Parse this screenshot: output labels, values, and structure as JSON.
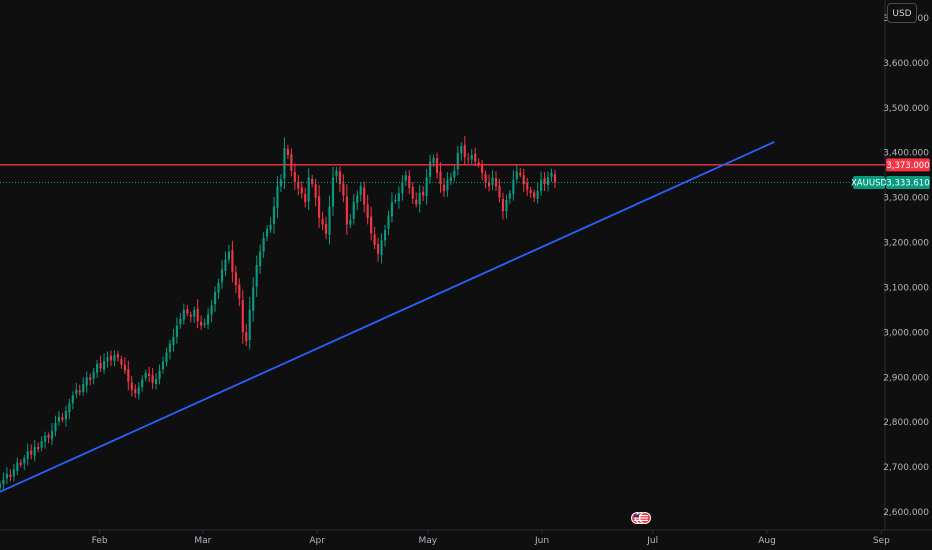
{
  "currency_label": "USD",
  "colors": {
    "background": "#0f0f0f",
    "up": "#089981",
    "down": "#f23645",
    "resistance": "#f23645",
    "trendline": "#2962ff",
    "price_line": "#089981",
    "axis_text": "#b2b5be"
  },
  "badges": {
    "resistance_value": "3,373.000",
    "symbol": "XAUUSD",
    "last_price": "3,333.610"
  },
  "events_icon": "us-flag-events-icon",
  "chart_data": {
    "type": "candlestick",
    "symbol": "XAUUSD",
    "x_ticks": [
      "Feb",
      "Mar",
      "Apr",
      "May",
      "Jun",
      "Jul",
      "Aug",
      "Sep"
    ],
    "y_ticks": [
      "2,600.000",
      "2,700.000",
      "2,800.000",
      "2,900.000",
      "3,000.000",
      "3,100.000",
      "3,200.000",
      "3,300.000",
      "3,400.000",
      "3,500.000",
      "3,600.000",
      "3,700.000"
    ],
    "y_tick_values": [
      2600,
      2700,
      2800,
      2900,
      3000,
      3100,
      3200,
      3300,
      3400,
      3500,
      3600,
      3700
    ],
    "ylim": [
      2560,
      3740
    ],
    "x_range_days": [
      0,
      240
    ],
    "month_start_days": [
      27,
      55,
      86,
      116,
      147,
      177,
      208,
      239
    ],
    "resistance_level": 3373,
    "last_price": 3333.61,
    "trendline": {
      "start": {
        "day": 0,
        "price": 2645
      },
      "end": {
        "day": 210,
        "price": 3424
      }
    },
    "closes": [
      2662,
      2672,
      2685,
      2678,
      2695,
      2710,
      2705,
      2720,
      2735,
      2728,
      2745,
      2740,
      2758,
      2770,
      2765,
      2780,
      2798,
      2812,
      2805,
      2825,
      2842,
      2860,
      2872,
      2866,
      2885,
      2900,
      2894,
      2912,
      2930,
      2920,
      2936,
      2945,
      2938,
      2950,
      2944,
      2928,
      2915,
      2890,
      2872,
      2865,
      2878,
      2895,
      2910,
      2903,
      2888,
      2896,
      2915,
      2935,
      2955,
      2975,
      2990,
      3015,
      3030,
      3050,
      3042,
      3035,
      3050,
      3025,
      3015,
      3020,
      3040,
      3060,
      3090,
      3110,
      3140,
      3162,
      3180,
      3135,
      3105,
      3075,
      3000,
      2980,
      3050,
      3100,
      3150,
      3180,
      3210,
      3230,
      3240,
      3280,
      3325,
      3340,
      3410,
      3395,
      3360,
      3335,
      3320,
      3310,
      3290,
      3345,
      3330,
      3300,
      3255,
      3240,
      3220,
      3280,
      3345,
      3360,
      3330,
      3305,
      3240,
      3250,
      3290,
      3305,
      3325,
      3285,
      3255,
      3220,
      3195,
      3175,
      3205,
      3228,
      3260,
      3290,
      3295,
      3310,
      3335,
      3350,
      3322,
      3298,
      3285,
      3310,
      3305,
      3345,
      3380,
      3388,
      3355,
      3330,
      3315,
      3340,
      3345,
      3360,
      3400,
      3415,
      3390,
      3385,
      3395,
      3380,
      3372,
      3355,
      3335,
      3325,
      3345,
      3325,
      3300,
      3270,
      3295,
      3310,
      3340,
      3358,
      3350,
      3330,
      3318,
      3310,
      3300,
      3315,
      3340,
      3330,
      3345,
      3355,
      3333
    ]
  }
}
